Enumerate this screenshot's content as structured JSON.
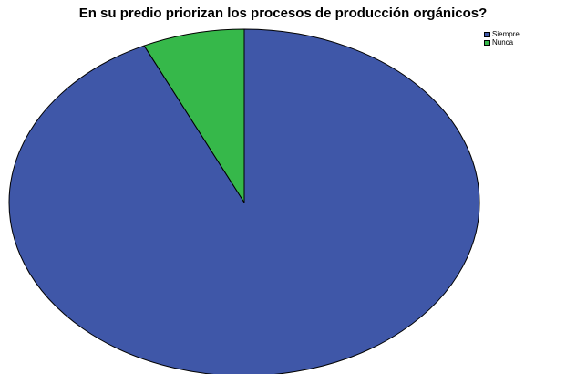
{
  "chart_data": {
    "type": "pie",
    "title": "En su predio priorizan los procesos de producción orgánicos?",
    "categories": [
      "Siempre",
      "Nunca"
    ],
    "values": [
      93,
      7
    ],
    "colors": [
      "#3f57a8",
      "#36b84a"
    ],
    "legend_position": "top-right",
    "start_angle_deg": 0,
    "direction": "clockwise"
  }
}
